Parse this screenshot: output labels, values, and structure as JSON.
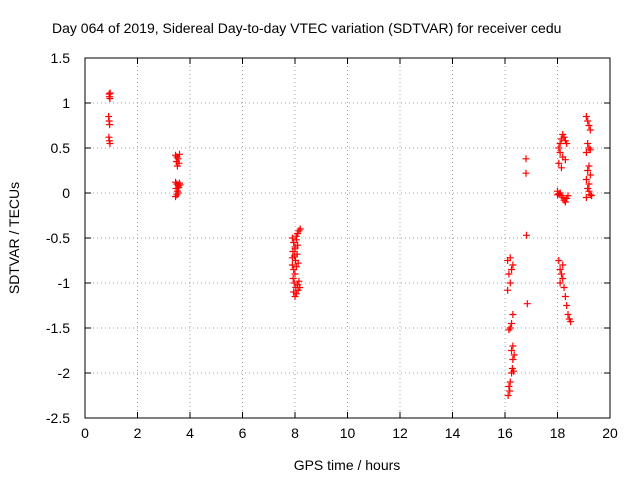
{
  "chart_data": {
    "type": "scatter",
    "title": "Day 064 of 2019, Sidereal Day-to-day VTEC variation (SDTVAR) for receiver cedu",
    "xlabel": "GPS time / hours",
    "ylabel": "SDTVAR / TECUs",
    "xlim": [
      0,
      20
    ],
    "ylim": [
      -2.5,
      1.5
    ],
    "xticks": [
      0,
      2,
      4,
      6,
      8,
      10,
      12,
      14,
      16,
      18,
      20
    ],
    "yticks": [
      -2.5,
      -2,
      -1.5,
      -1,
      -0.5,
      0,
      0.5,
      1,
      1.5
    ],
    "xtick_labels": [
      "0",
      "2",
      "4",
      "6",
      "8",
      "10",
      "12",
      "14",
      "16",
      "18",
      "20"
    ],
    "ytick_labels": [
      "-2.5",
      "-2",
      "-1.5",
      "-1",
      "-0.5",
      "0",
      "0.5",
      "1",
      "1.5"
    ],
    "grid": true,
    "marker": "+",
    "color": "#ff0000",
    "series": [
      {
        "name": "SDTVAR",
        "points": [
          [
            0.92,
            1.1
          ],
          [
            0.93,
            1.07
          ],
          [
            0.95,
            1.05
          ],
          [
            0.96,
            1.11
          ],
          [
            0.9,
            0.85
          ],
          [
            0.92,
            0.8
          ],
          [
            0.94,
            0.76
          ],
          [
            0.91,
            0.62
          ],
          [
            0.93,
            0.58
          ],
          [
            0.95,
            0.55
          ],
          [
            3.45,
            0.42
          ],
          [
            3.5,
            0.4
          ],
          [
            3.55,
            0.38
          ],
          [
            3.6,
            0.43
          ],
          [
            3.48,
            0.35
          ],
          [
            3.52,
            0.3
          ],
          [
            3.58,
            0.33
          ],
          [
            3.45,
            0.12
          ],
          [
            3.5,
            0.1
          ],
          [
            3.55,
            0.08
          ],
          [
            3.6,
            0.11
          ],
          [
            3.47,
            0.05
          ],
          [
            3.52,
            0.02
          ],
          [
            3.57,
            0.06
          ],
          [
            3.62,
            0.09
          ],
          [
            3.5,
            -0.02
          ],
          [
            3.45,
            -0.04
          ],
          [
            3.55,
            0.0
          ],
          [
            7.9,
            -0.5
          ],
          [
            7.95,
            -0.55
          ],
          [
            8.0,
            -0.6
          ],
          [
            8.05,
            -0.52
          ],
          [
            8.1,
            -0.45
          ],
          [
            8.15,
            -0.42
          ],
          [
            8.2,
            -0.4
          ],
          [
            7.92,
            -0.65
          ],
          [
            7.98,
            -0.7
          ],
          [
            8.02,
            -0.75
          ],
          [
            8.08,
            -0.68
          ],
          [
            7.9,
            -0.8
          ],
          [
            7.95,
            -0.85
          ],
          [
            8.0,
            -0.9
          ],
          [
            8.05,
            -0.82
          ],
          [
            8.12,
            -0.78
          ],
          [
            7.93,
            -0.95
          ],
          [
            7.97,
            -1.0
          ],
          [
            8.03,
            -1.05
          ],
          [
            8.1,
            -1.02
          ],
          [
            8.15,
            -0.98
          ],
          [
            7.95,
            -1.1
          ],
          [
            8.0,
            -1.15
          ],
          [
            8.05,
            -1.12
          ],
          [
            8.12,
            -1.08
          ],
          [
            8.18,
            -1.05
          ],
          [
            7.9,
            -0.72
          ],
          [
            8.0,
            -0.62
          ],
          [
            8.1,
            -0.58
          ],
          [
            8.05,
            -0.48
          ],
          [
            16.1,
            -0.75
          ],
          [
            16.2,
            -0.72
          ],
          [
            16.3,
            -0.8
          ],
          [
            16.25,
            -0.85
          ],
          [
            16.15,
            -0.9
          ],
          [
            16.2,
            -1.0
          ],
          [
            16.1,
            -1.08
          ],
          [
            16.3,
            -1.35
          ],
          [
            16.25,
            -1.45
          ],
          [
            16.2,
            -1.5
          ],
          [
            16.15,
            -1.52
          ],
          [
            16.3,
            -1.7
          ],
          [
            16.25,
            -1.75
          ],
          [
            16.35,
            -1.8
          ],
          [
            16.3,
            -1.85
          ],
          [
            16.28,
            -1.95
          ],
          [
            16.33,
            -1.98
          ],
          [
            16.25,
            -2.0
          ],
          [
            16.2,
            -2.1
          ],
          [
            16.15,
            -2.15
          ],
          [
            16.18,
            -2.2
          ],
          [
            16.12,
            -2.25
          ],
          [
            16.8,
            0.38
          ],
          [
            16.8,
            0.22
          ],
          [
            16.82,
            -0.47
          ],
          [
            16.85,
            -1.23
          ],
          [
            18.05,
            0.5
          ],
          [
            18.1,
            0.55
          ],
          [
            18.15,
            0.6
          ],
          [
            18.2,
            0.65
          ],
          [
            18.25,
            0.62
          ],
          [
            18.3,
            0.58
          ],
          [
            18.35,
            0.55
          ],
          [
            18.1,
            0.45
          ],
          [
            18.2,
            0.4
          ],
          [
            18.3,
            0.37
          ],
          [
            18.05,
            0.33
          ],
          [
            18.15,
            0.28
          ],
          [
            18.0,
            0.02
          ],
          [
            18.05,
            -0.01
          ],
          [
            18.1,
            0.0
          ],
          [
            18.15,
            -0.03
          ],
          [
            18.2,
            -0.05
          ],
          [
            18.25,
            -0.08
          ],
          [
            18.3,
            -0.1
          ],
          [
            18.35,
            -0.06
          ],
          [
            18.4,
            -0.03
          ],
          [
            18.0,
            -0.02
          ],
          [
            18.05,
            -0.75
          ],
          [
            18.1,
            -0.85
          ],
          [
            18.15,
            -0.9
          ],
          [
            18.2,
            -0.95
          ],
          [
            18.25,
            -1.05
          ],
          [
            18.3,
            -1.15
          ],
          [
            18.35,
            -1.25
          ],
          [
            18.4,
            -1.35
          ],
          [
            18.45,
            -1.4
          ],
          [
            18.5,
            -1.43
          ],
          [
            18.1,
            -1.0
          ],
          [
            18.2,
            -0.8
          ],
          [
            19.1,
            0.85
          ],
          [
            19.15,
            0.8
          ],
          [
            19.2,
            0.75
          ],
          [
            19.25,
            0.7
          ],
          [
            19.15,
            0.55
          ],
          [
            19.2,
            0.5
          ],
          [
            19.25,
            0.48
          ],
          [
            19.1,
            0.45
          ],
          [
            19.2,
            0.3
          ],
          [
            19.15,
            0.25
          ],
          [
            19.25,
            0.2
          ],
          [
            19.1,
            0.15
          ],
          [
            19.2,
            0.1
          ],
          [
            19.15,
            0.05
          ],
          [
            19.2,
            0.02
          ],
          [
            19.25,
            -0.02
          ],
          [
            19.1,
            -0.05
          ],
          [
            19.3,
            -0.03
          ]
        ]
      }
    ]
  }
}
